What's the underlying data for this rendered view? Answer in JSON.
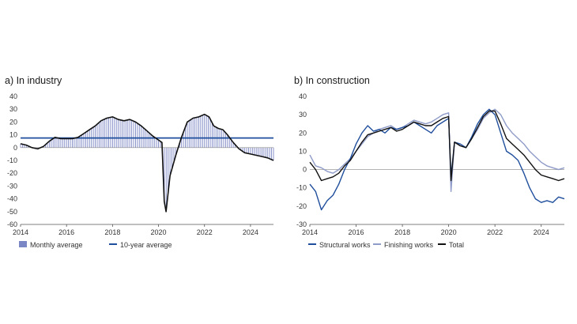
{
  "colors": {
    "industry_bar": "#7b86c4",
    "industry_avg": "#1f4e9c",
    "industry_line": "#111111",
    "structural": "#1f4e9c",
    "finishing": "#8f9bc8",
    "total": "#111111",
    "zero_axis": "#888888"
  },
  "chart_data": [
    {
      "type": "bar",
      "title": "a)  In industry",
      "xlim": [
        2014,
        2025
      ],
      "ylim": [
        -60,
        40
      ],
      "x_ticks": [
        "2014",
        "2016",
        "2018",
        "2020",
        "2022",
        "2024"
      ],
      "y_ticks": [
        "40",
        "30",
        "20",
        "10",
        "0",
        "-10",
        "-20",
        "-30",
        "-40",
        "-50",
        "-60"
      ],
      "legend": [
        "Monthly average",
        "10-year average"
      ],
      "ten_year_average": 7.5,
      "monthly_average_points": [
        [
          2014.0,
          3
        ],
        [
          2014.25,
          2
        ],
        [
          2014.5,
          0
        ],
        [
          2014.75,
          -1
        ],
        [
          2015.0,
          1
        ],
        [
          2015.25,
          5
        ],
        [
          2015.5,
          8
        ],
        [
          2015.75,
          7
        ],
        [
          2016.0,
          7
        ],
        [
          2016.25,
          7
        ],
        [
          2016.5,
          8
        ],
        [
          2016.75,
          11
        ],
        [
          2017.0,
          14
        ],
        [
          2017.25,
          17
        ],
        [
          2017.5,
          21
        ],
        [
          2017.75,
          23
        ],
        [
          2018.0,
          24
        ],
        [
          2018.25,
          22
        ],
        [
          2018.5,
          21
        ],
        [
          2018.75,
          22
        ],
        [
          2019.0,
          20
        ],
        [
          2019.25,
          17
        ],
        [
          2019.5,
          13
        ],
        [
          2019.75,
          9
        ],
        [
          2020.0,
          6
        ],
        [
          2020.15,
          4
        ],
        [
          2020.25,
          -42
        ],
        [
          2020.33,
          -50
        ],
        [
          2020.5,
          -22
        ],
        [
          2020.75,
          -6
        ],
        [
          2021.0,
          8
        ],
        [
          2021.25,
          20
        ],
        [
          2021.5,
          23
        ],
        [
          2021.75,
          24
        ],
        [
          2022.0,
          26
        ],
        [
          2022.2,
          24
        ],
        [
          2022.4,
          17
        ],
        [
          2022.6,
          15
        ],
        [
          2022.8,
          14
        ],
        [
          2023.0,
          10
        ],
        [
          2023.25,
          4
        ],
        [
          2023.5,
          -1
        ],
        [
          2023.75,
          -4
        ],
        [
          2024.0,
          -5
        ],
        [
          2024.25,
          -6
        ],
        [
          2024.5,
          -7
        ],
        [
          2024.75,
          -8
        ],
        [
          2025.0,
          -10
        ]
      ]
    },
    {
      "type": "line",
      "title": "b)  In construction",
      "xlim": [
        2014,
        2025
      ],
      "ylim": [
        -30,
        40
      ],
      "x_ticks": [
        "2014",
        "2016",
        "2018",
        "2020",
        "2022",
        "2024"
      ],
      "y_ticks": [
        "40",
        "30",
        "20",
        "10",
        "0",
        "-10",
        "-20",
        "-30"
      ],
      "series": [
        {
          "name": "Structural works",
          "points": [
            [
              2014.0,
              -8
            ],
            [
              2014.25,
              -12
            ],
            [
              2014.5,
              -22
            ],
            [
              2014.75,
              -17
            ],
            [
              2015.0,
              -14
            ],
            [
              2015.25,
              -8
            ],
            [
              2015.5,
              0
            ],
            [
              2015.75,
              6
            ],
            [
              2016.0,
              14
            ],
            [
              2016.25,
              20
            ],
            [
              2016.5,
              24
            ],
            [
              2016.75,
              21
            ],
            [
              2017.0,
              22
            ],
            [
              2017.25,
              20
            ],
            [
              2017.5,
              23
            ],
            [
              2017.75,
              22
            ],
            [
              2018.0,
              23
            ],
            [
              2018.25,
              24
            ],
            [
              2018.5,
              26
            ],
            [
              2018.75,
              24
            ],
            [
              2019.0,
              22
            ],
            [
              2019.25,
              20
            ],
            [
              2019.5,
              24
            ],
            [
              2019.75,
              26
            ],
            [
              2020.0,
              28
            ],
            [
              2020.1,
              -4
            ],
            [
              2020.25,
              15
            ],
            [
              2020.5,
              14
            ],
            [
              2020.75,
              12
            ],
            [
              2021.0,
              18
            ],
            [
              2021.25,
              25
            ],
            [
              2021.5,
              30
            ],
            [
              2021.75,
              33
            ],
            [
              2022.0,
              30
            ],
            [
              2022.25,
              20
            ],
            [
              2022.5,
              10
            ],
            [
              2022.75,
              8
            ],
            [
              2023.0,
              5
            ],
            [
              2023.25,
              -2
            ],
            [
              2023.5,
              -10
            ],
            [
              2023.75,
              -16
            ],
            [
              2024.0,
              -18
            ],
            [
              2024.25,
              -17
            ],
            [
              2024.5,
              -18
            ],
            [
              2024.75,
              -15
            ],
            [
              2025.0,
              -16
            ]
          ]
        },
        {
          "name": "Finishing works",
          "points": [
            [
              2014.0,
              8
            ],
            [
              2014.25,
              2
            ],
            [
              2014.5,
              1
            ],
            [
              2014.75,
              -1
            ],
            [
              2015.0,
              -2
            ],
            [
              2015.25,
              0
            ],
            [
              2015.5,
              3
            ],
            [
              2015.75,
              6
            ],
            [
              2016.0,
              10
            ],
            [
              2016.25,
              14
            ],
            [
              2016.5,
              18
            ],
            [
              2016.75,
              20
            ],
            [
              2017.0,
              22
            ],
            [
              2017.25,
              23
            ],
            [
              2017.5,
              24
            ],
            [
              2017.75,
              22
            ],
            [
              2018.0,
              23
            ],
            [
              2018.25,
              25
            ],
            [
              2018.5,
              27
            ],
            [
              2018.75,
              26
            ],
            [
              2019.0,
              25
            ],
            [
              2019.25,
              26
            ],
            [
              2019.5,
              28
            ],
            [
              2019.75,
              30
            ],
            [
              2020.0,
              31
            ],
            [
              2020.1,
              -12
            ],
            [
              2020.25,
              15
            ],
            [
              2020.5,
              13
            ],
            [
              2020.75,
              12
            ],
            [
              2021.0,
              17
            ],
            [
              2021.25,
              22
            ],
            [
              2021.5,
              28
            ],
            [
              2021.75,
              31
            ],
            [
              2022.0,
              33
            ],
            [
              2022.25,
              30
            ],
            [
              2022.5,
              24
            ],
            [
              2022.75,
              20
            ],
            [
              2023.0,
              17
            ],
            [
              2023.25,
              14
            ],
            [
              2023.5,
              10
            ],
            [
              2023.75,
              7
            ],
            [
              2024.0,
              4
            ],
            [
              2024.25,
              2
            ],
            [
              2024.5,
              1
            ],
            [
              2024.75,
              0
            ],
            [
              2025.0,
              1
            ]
          ]
        },
        {
          "name": "Total",
          "points": [
            [
              2014.0,
              4
            ],
            [
              2014.25,
              0
            ],
            [
              2014.5,
              -6
            ],
            [
              2014.75,
              -5
            ],
            [
              2015.0,
              -4
            ],
            [
              2015.25,
              -2
            ],
            [
              2015.5,
              2
            ],
            [
              2015.75,
              5
            ],
            [
              2016.0,
              10
            ],
            [
              2016.25,
              15
            ],
            [
              2016.5,
              19
            ],
            [
              2016.75,
              20
            ],
            [
              2017.0,
              21
            ],
            [
              2017.25,
              22
            ],
            [
              2017.5,
              23
            ],
            [
              2017.75,
              21
            ],
            [
              2018.0,
              22
            ],
            [
              2018.25,
              24
            ],
            [
              2018.5,
              26
            ],
            [
              2018.75,
              25
            ],
            [
              2019.0,
              24
            ],
            [
              2019.25,
              24
            ],
            [
              2019.5,
              26
            ],
            [
              2019.75,
              28
            ],
            [
              2020.0,
              29
            ],
            [
              2020.1,
              -6
            ],
            [
              2020.25,
              15
            ],
            [
              2020.5,
              13
            ],
            [
              2020.75,
              12
            ],
            [
              2021.0,
              17
            ],
            [
              2021.25,
              23
            ],
            [
              2021.5,
              29
            ],
            [
              2021.75,
              32
            ],
            [
              2022.0,
              32
            ],
            [
              2022.25,
              25
            ],
            [
              2022.5,
              17
            ],
            [
              2022.75,
              14
            ],
            [
              2023.0,
              11
            ],
            [
              2023.25,
              8
            ],
            [
              2023.5,
              4
            ],
            [
              2023.75,
              0
            ],
            [
              2024.0,
              -3
            ],
            [
              2024.25,
              -4
            ],
            [
              2024.5,
              -5
            ],
            [
              2024.75,
              -6
            ],
            [
              2025.0,
              -5
            ]
          ]
        }
      ]
    }
  ]
}
